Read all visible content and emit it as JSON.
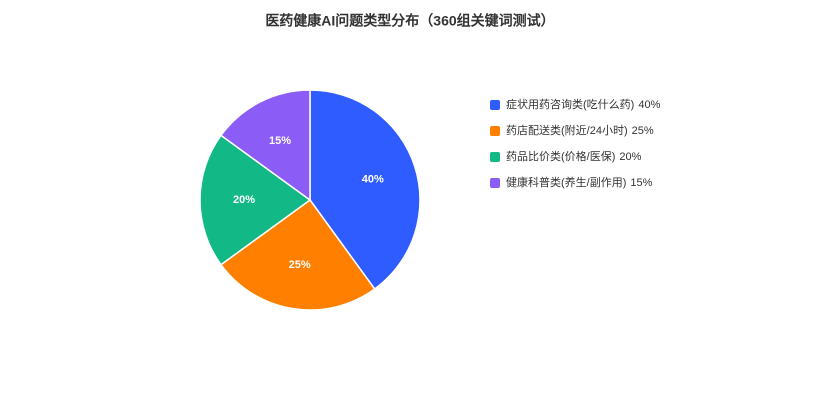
{
  "chart_data": {
    "type": "pie",
    "title": "医药健康AI问题类型分布（360组关键词测试）",
    "categories": [
      "症状用药咨询类(吃什么药)",
      "药店配送类(附近/24小时)",
      "药品比价类(价格/医保)",
      "健康科普类(养生/副作用)"
    ],
    "values": [
      40,
      25,
      20,
      15
    ],
    "value_labels": [
      "40%",
      "25%",
      "20%",
      "15%"
    ],
    "colors": [
      "#2f5cff",
      "#ff7f00",
      "#12b886",
      "#8b5cf6"
    ],
    "legend": "right"
  }
}
